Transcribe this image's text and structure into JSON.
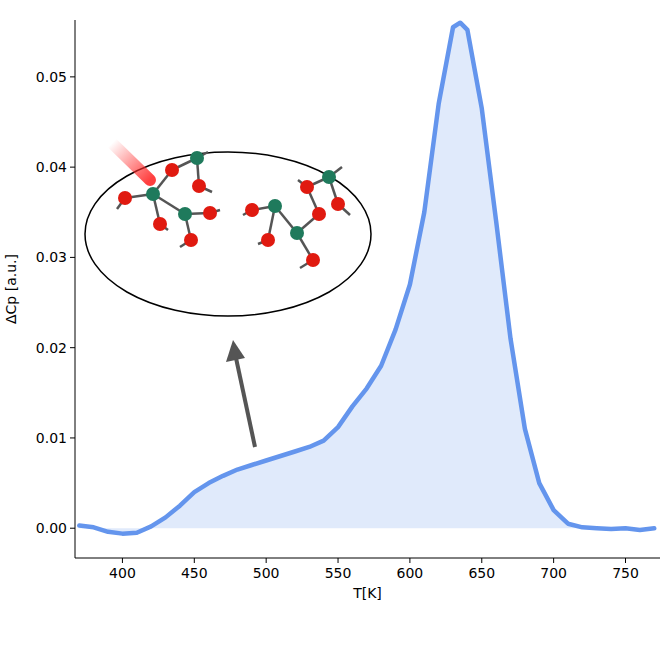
{
  "chart_data": {
    "type": "area",
    "x_label": "T[K]",
    "y_label": "ΔCp [a.u.]",
    "color": "#6495ed",
    "x": [
      370,
      380,
      390,
      400,
      410,
      420,
      430,
      440,
      450,
      460,
      470,
      480,
      490,
      500,
      510,
      520,
      530,
      540,
      550,
      560,
      570,
      580,
      590,
      600,
      610,
      620,
      630,
      635,
      640,
      650,
      660,
      670,
      680,
      690,
      700,
      710,
      720,
      730,
      740,
      750,
      760,
      770
    ],
    "values": [
      0.0003,
      0.0001,
      -0.0004,
      -0.0006,
      -0.0005,
      0.0002,
      0.0012,
      0.0025,
      0.004,
      0.005,
      0.0058,
      0.0065,
      0.007,
      0.0075,
      0.008,
      0.0085,
      0.009,
      0.0097,
      0.0112,
      0.0135,
      0.0155,
      0.018,
      0.022,
      0.027,
      0.035,
      0.047,
      0.0555,
      0.056,
      0.0552,
      0.0465,
      0.034,
      0.021,
      0.011,
      0.005,
      0.002,
      0.0005,
      0.0001,
      0.0,
      -0.0001,
      0.0,
      -0.0002,
      0.0
    ],
    "xlim": [
      367,
      774
    ],
    "ylim": [
      -0.0033,
      0.0563
    ],
    "xticks": [
      400,
      450,
      500,
      550,
      600,
      650,
      700,
      750
    ],
    "yticks": [
      {
        "value": 0,
        "label": "0.00"
      },
      {
        "value": 0.01,
        "label": "0.01"
      },
      {
        "value": 0.02,
        "label": "0.02"
      },
      {
        "value": 0.03,
        "label": "0.03"
      },
      {
        "value": 0.04,
        "label": "0.04"
      },
      {
        "value": 0.05,
        "label": "0.05"
      }
    ],
    "grid": false
  }
}
